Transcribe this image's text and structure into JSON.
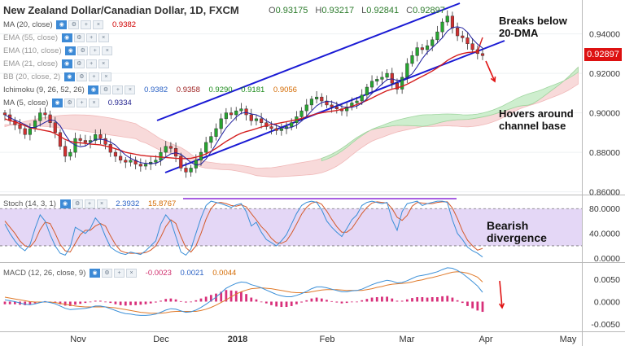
{
  "header": {
    "title": "New Zealand Dollar/Canadian Dollar, 1D, FXCM",
    "ohlc": [
      {
        "label": "O",
        "value": "0.93175"
      },
      {
        "label": "H",
        "value": "0.93217"
      },
      {
        "label": "L",
        "value": "0.92841"
      },
      {
        "label": "C",
        "value": "0.92897"
      }
    ]
  },
  "indicators": [
    {
      "name": "MA (20, close)",
      "value": "0.9382",
      "value_color": "#d00000"
    },
    {
      "name": "EMA (55, close)",
      "value": "",
      "value_color": "#999999"
    },
    {
      "name": "EMA (110, close)",
      "value": "",
      "value_color": "#999999"
    },
    {
      "name": "EMA (21, close)",
      "value": "",
      "value_color": "#999999"
    },
    {
      "name": "BB (20, close, 2)",
      "value": "",
      "value_color": "#999999"
    }
  ],
  "ichimoku": {
    "name": "Ichimoku (9, 26, 52, 26)",
    "values": [
      {
        "v": "0.9382",
        "color": "#2b62c5"
      },
      {
        "v": "0.9358",
        "color": "#9b1b1b"
      },
      {
        "v": "0.9290",
        "color": "#1e8c1e"
      },
      {
        "v": "0.9181",
        "color": "#1e8c1e"
      },
      {
        "v": "0.9056",
        "color": "#d46a00"
      }
    ]
  },
  "ma5": {
    "name": "MA (5, close)",
    "value": "0.9334",
    "color": "#1c1c8c"
  },
  "stoch": {
    "name": "Stoch (14, 3, 1)",
    "values": [
      {
        "v": "2.3932",
        "color": "#2b62c5"
      },
      {
        "v": "15.8767",
        "color": "#d46a00"
      }
    ]
  },
  "macd": {
    "name": "MACD (12, 26, close, 9)",
    "values": [
      {
        "v": "-0.0023",
        "color": "#d0306e"
      },
      {
        "v": "0.0021",
        "color": "#2b62c5"
      },
      {
        "v": "0.0044",
        "color": "#d46a00"
      }
    ]
  },
  "annotations": {
    "breaks": "Breaks below\n20-DMA",
    "hovers": "Hovers around\nchannel base",
    "divergence": "Bearish\ndivergence"
  },
  "price_tag": "0.92897",
  "colors": {
    "up": "#26a630",
    "down": "#d23030",
    "ma20": "#d41e1e",
    "ma5": "#1f1f9e",
    "channel": "#1a1ad4",
    "cloud_green": "#c9ecc9",
    "cloud_red": "#f7d3d3",
    "stoch_k": "#3a8fd8",
    "stoch_d": "#d45a2a",
    "stoch_band": "#d8c6f2",
    "stoch_line": "#8a2ad8",
    "macd_line": "#3a8fd8",
    "macd_signal": "#e07a2a",
    "macd_hist": "#d8307a",
    "arrow": "#e01414"
  },
  "chart_data": {
    "type": "candlestick",
    "price_axis": {
      "ticks": [
        "0.94000",
        "0.92000",
        "0.90000",
        "0.88000",
        "0.86000"
      ],
      "ylim": [
        0.859,
        0.9555
      ]
    },
    "stoch_axis": {
      "ticks": [
        "80.0000",
        "40.0000",
        "0.0000"
      ],
      "ylim": [
        -5,
        100
      ]
    },
    "macd_axis": {
      "ticks": [
        "0.0050",
        "0.0000",
        "-0.0050"
      ],
      "ylim": [
        -0.0065,
        0.0085
      ]
    },
    "time_axis": {
      "labels": [
        "Nov",
        "Dec",
        "2018",
        "Feb",
        "Mar",
        "Apr",
        "May"
      ]
    },
    "price_series": [
      0.899,
      0.896,
      0.894,
      0.892,
      0.889,
      0.892,
      0.896,
      0.9,
      0.899,
      0.895,
      0.89,
      0.883,
      0.878,
      0.88,
      0.887,
      0.886,
      0.885,
      0.886,
      0.889,
      0.887,
      0.884,
      0.88,
      0.878,
      0.876,
      0.875,
      0.876,
      0.874,
      0.873,
      0.874,
      0.875,
      0.876,
      0.88,
      0.883,
      0.882,
      0.878,
      0.872,
      0.87,
      0.872,
      0.876,
      0.88,
      0.885,
      0.888,
      0.892,
      0.897,
      0.9,
      0.899,
      0.901,
      0.902,
      0.899,
      0.896,
      0.897,
      0.895,
      0.893,
      0.892,
      0.891,
      0.892,
      0.893,
      0.895,
      0.898,
      0.901,
      0.904,
      0.907,
      0.908,
      0.906,
      0.904,
      0.903,
      0.902,
      0.901,
      0.903,
      0.905,
      0.906,
      0.909,
      0.913,
      0.916,
      0.917,
      0.918,
      0.92,
      0.915,
      0.912,
      0.918,
      0.925,
      0.929,
      0.933,
      0.932,
      0.934,
      0.937,
      0.941,
      0.946,
      0.949,
      0.943,
      0.939,
      0.938,
      0.935,
      0.932,
      0.93,
      0.929
    ],
    "ma20_series": [
      0.897,
      0.896,
      0.8955,
      0.8945,
      0.8935,
      0.8925,
      0.892,
      0.8915,
      0.891,
      0.8905,
      0.8895,
      0.888,
      0.8865,
      0.8855,
      0.885,
      0.8848,
      0.8845,
      0.8842,
      0.884,
      0.8838,
      0.8832,
      0.8826,
      0.8818,
      0.881,
      0.88,
      0.8795,
      0.879,
      0.8785,
      0.8782,
      0.878,
      0.8778,
      0.8776,
      0.8774,
      0.8772,
      0.877,
      0.8768,
      0.8768,
      0.877,
      0.8775,
      0.8782,
      0.8792,
      0.8805,
      0.882,
      0.8838,
      0.8855,
      0.887,
      0.8885,
      0.8897,
      0.8905,
      0.8912,
      0.892,
      0.8928,
      0.8935,
      0.894,
      0.8945,
      0.895,
      0.8955,
      0.896,
      0.8965,
      0.8972,
      0.898,
      0.8988,
      0.8995,
      0.9,
      0.9005,
      0.9008,
      0.9012,
      0.9018,
      0.9025,
      0.9033,
      0.9042,
      0.9052,
      0.9063,
      0.9075,
      0.9088,
      0.91,
      0.9112,
      0.912,
      0.9126,
      0.9134,
      0.9145,
      0.9158,
      0.9172,
      0.9185,
      0.9198,
      0.9212,
      0.9228,
      0.9246,
      0.9265,
      0.928,
      0.9292,
      0.93,
      0.9305,
      0.9308,
      0.931,
      0.9382
    ],
    "stoch_k": [
      55,
      40,
      28,
      18,
      12,
      22,
      48,
      70,
      60,
      38,
      20,
      8,
      5,
      18,
      50,
      45,
      40,
      48,
      65,
      55,
      35,
      18,
      12,
      8,
      6,
      10,
      8,
      6,
      12,
      20,
      28,
      55,
      70,
      60,
      35,
      10,
      5,
      15,
      40,
      65,
      85,
      92,
      90,
      88,
      85,
      82,
      86,
      88,
      75,
      52,
      58,
      42,
      30,
      25,
      20,
      28,
      38,
      55,
      72,
      85,
      90,
      92,
      90,
      78,
      60,
      50,
      42,
      35,
      48,
      62,
      70,
      85,
      90,
      92,
      90,
      88,
      90,
      62,
      45,
      75,
      88,
      90,
      92,
      85,
      88,
      90,
      92,
      92,
      90,
      62,
      40,
      30,
      18,
      12,
      8,
      2
    ],
    "stoch_d": [
      60,
      50,
      40,
      28,
      20,
      18,
      28,
      46,
      58,
      56,
      40,
      22,
      12,
      10,
      24,
      38,
      45,
      45,
      52,
      56,
      52,
      36,
      22,
      12,
      9,
      8,
      8,
      8,
      9,
      13,
      20,
      34,
      51,
      62,
      56,
      35,
      17,
      10,
      20,
      40,
      63,
      80,
      89,
      90,
      88,
      85,
      84,
      86,
      83,
      72,
      62,
      51,
      43,
      32,
      25,
      24,
      28,
      40,
      55,
      71,
      82,
      89,
      91,
      87,
      76,
      63,
      51,
      42,
      42,
      48,
      60,
      72,
      82,
      89,
      91,
      90,
      89,
      80,
      66,
      61,
      69,
      84,
      90,
      89,
      88,
      88,
      90,
      91,
      91,
      81,
      64,
      44,
      29,
      20,
      13,
      15.9
    ],
    "macd_line": [
      0.0004,
      0.0002,
      0.0,
      -0.0003,
      -0.0006,
      -0.0007,
      -0.0005,
      -0.0002,
      0.0,
      -0.0002,
      -0.0005,
      -0.001,
      -0.0015,
      -0.0018,
      -0.0017,
      -0.0016,
      -0.0015,
      -0.0013,
      -0.001,
      -0.001,
      -0.0012,
      -0.0016,
      -0.002,
      -0.0024,
      -0.0027,
      -0.0028,
      -0.003,
      -0.0031,
      -0.0031,
      -0.003,
      -0.0028,
      -0.0024,
      -0.0019,
      -0.0016,
      -0.0017,
      -0.0021,
      -0.0024,
      -0.0023,
      -0.0019,
      -0.0013,
      -0.0006,
      0.0002,
      0.001,
      0.002,
      0.003,
      0.0036,
      0.0041,
      0.0044,
      0.0043,
      0.0038,
      0.0035,
      0.0031,
      0.0026,
      0.0021,
      0.0016,
      0.0013,
      0.0011,
      0.0011,
      0.0014,
      0.0018,
      0.0023,
      0.0029,
      0.0033,
      0.0033,
      0.0031,
      0.0028,
      0.0025,
      0.0022,
      0.0022,
      0.0024,
      0.0025,
      0.0028,
      0.0033,
      0.0038,
      0.0042,
      0.0045,
      0.0048,
      0.0046,
      0.0042,
      0.0043,
      0.0047,
      0.0052,
      0.0057,
      0.0059,
      0.0061,
      0.0064,
      0.0067,
      0.0072,
      0.0076,
      0.0075,
      0.007,
      0.0063,
      0.0054,
      0.0045,
      0.0035,
      0.0021
    ],
    "macd_signal": [
      0.001,
      0.0008,
      0.0006,
      0.0004,
      0.0002,
      0.0,
      -0.0001,
      -0.0001,
      -0.0001,
      -0.0001,
      -0.0002,
      -0.0004,
      -0.0006,
      -0.0008,
      -0.001,
      -0.0011,
      -0.0012,
      -0.0012,
      -0.0012,
      -0.0012,
      -0.0012,
      -0.0013,
      -0.0014,
      -0.0016,
      -0.0018,
      -0.002,
      -0.0022,
      -0.0024,
      -0.0025,
      -0.0026,
      -0.0026,
      -0.0026,
      -0.0025,
      -0.0023,
      -0.0022,
      -0.0022,
      -0.0022,
      -0.0022,
      -0.0022,
      -0.002,
      -0.0017,
      -0.0013,
      -0.0008,
      -0.0002,
      0.0004,
      0.0011,
      0.0017,
      0.0022,
      0.0026,
      0.0029,
      0.003,
      0.0031,
      0.003,
      0.0029,
      0.0027,
      0.0025,
      0.0023,
      0.0021,
      0.002,
      0.002,
      0.002,
      0.0022,
      0.0024,
      0.0026,
      0.0027,
      0.0027,
      0.0027,
      0.0026,
      0.0025,
      0.0025,
      0.0025,
      0.0025,
      0.0027,
      0.0029,
      0.0032,
      0.0034,
      0.0037,
      0.0039,
      0.004,
      0.0041,
      0.0042,
      0.0044,
      0.0047,
      0.0049,
      0.0052,
      0.0054,
      0.0057,
      0.006,
      0.0063,
      0.0066,
      0.0067,
      0.0066,
      0.0064,
      0.006,
      0.0055,
      0.0044
    ]
  }
}
